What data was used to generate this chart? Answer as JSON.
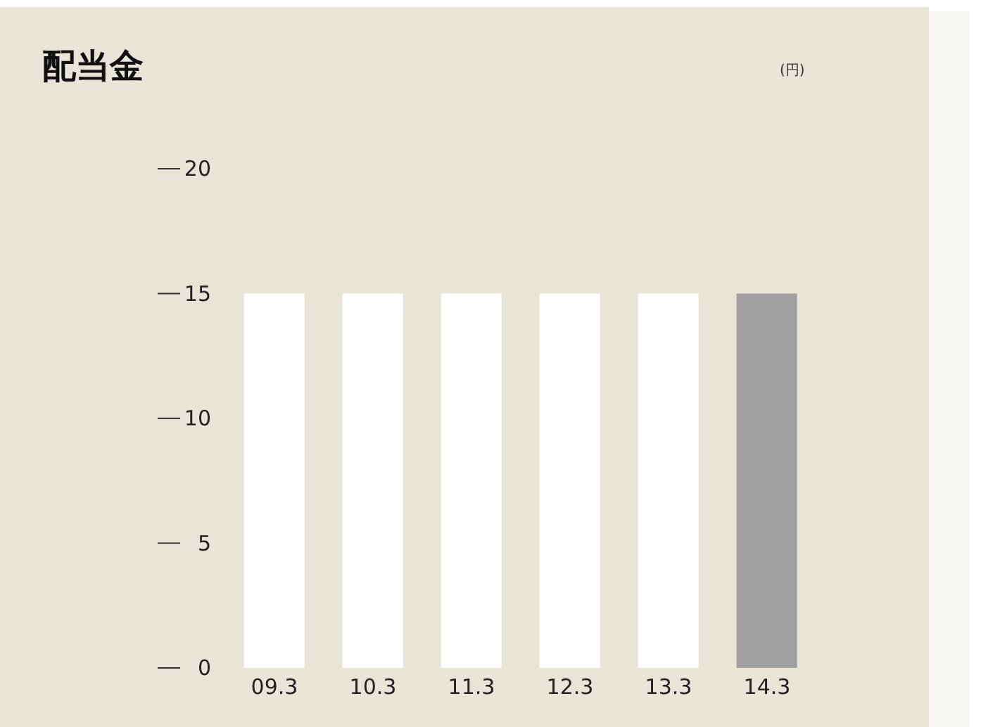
{
  "chart_data": {
    "type": "bar",
    "title": "配当金",
    "annotations": [
      "(円)"
    ],
    "categories": [
      "09.3",
      "10.3",
      "11.3",
      "12.3",
      "13.3",
      "14.3"
    ],
    "values": [
      15,
      15,
      15,
      15,
      15,
      15
    ],
    "colors": [
      "#ffffff",
      "#ffffff",
      "#ffffff",
      "#ffffff",
      "#ffffff",
      "#a0a0a0"
    ],
    "ylim": [
      0,
      20
    ],
    "yticks": [
      0,
      5,
      10,
      15,
      20
    ],
    "grid": false,
    "legend": false
  }
}
